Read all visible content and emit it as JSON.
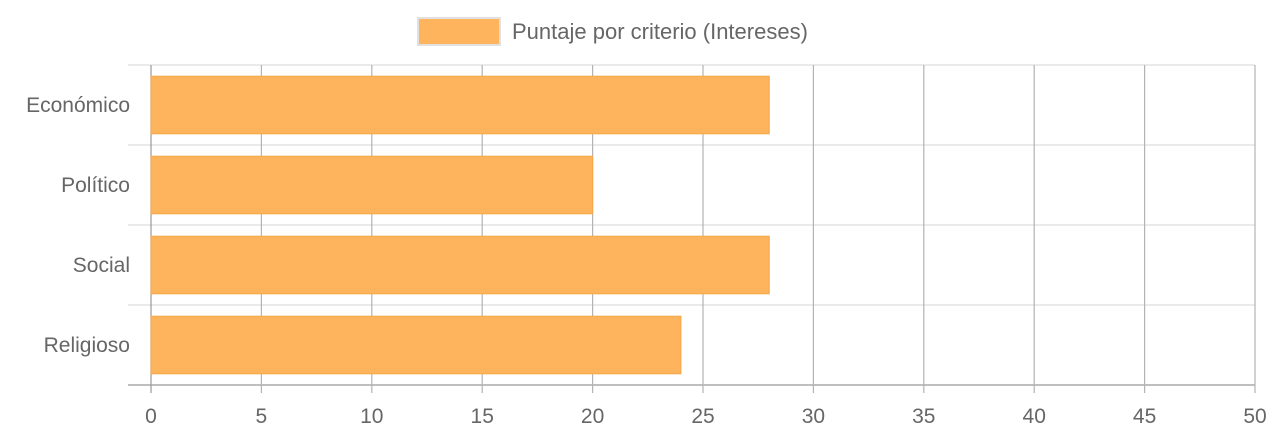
{
  "chart_data": {
    "type": "bar",
    "orientation": "horizontal",
    "categories": [
      "Económico",
      "Político",
      "Social",
      "Religioso"
    ],
    "series": [
      {
        "name": "Puntaje por criterio (Intereses)",
        "values": [
          28,
          20,
          28,
          24
        ],
        "color": "#fdb45c",
        "border_color": "#f5a74a"
      }
    ],
    "xlim": [
      0,
      50
    ],
    "xticks": [
      0,
      5,
      10,
      15,
      20,
      25,
      30,
      35,
      40,
      45,
      50
    ],
    "xgrid": true,
    "ygrid": true,
    "legend_position": "top-center",
    "grid_color_vertical": "#b3b3b3",
    "grid_color_horizontal": "#dddddd",
    "text_color": "#666666"
  }
}
